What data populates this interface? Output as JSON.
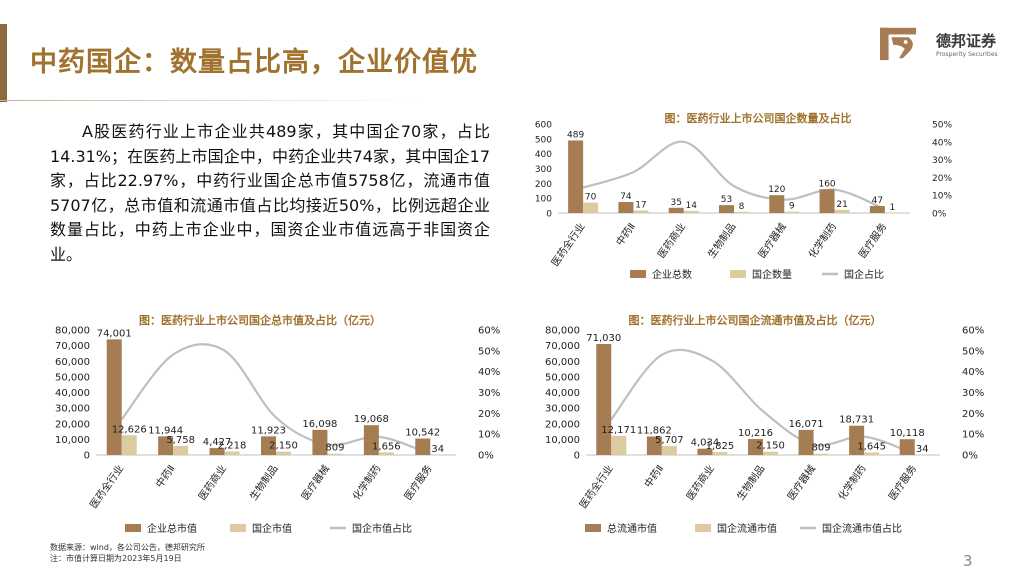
{
  "header": {
    "title": "中药国企：数量占比高，企业价值优"
  },
  "logo": {
    "name_cn": "德邦证券",
    "name_en": "Prosperity Securities"
  },
  "paragraph": "A股医药行业上市企业共489家，其中国企70家，占比14.31%；在医药上市国企中，中药企业共74家，其中国企17家，占比22.97%，中药行业国企总市值5758亿，流通市值5707亿，总市值和流通市值占比均接近50%，比例远超企业数量占比，中药上市企业中，国资企业市值远高于非国资企业。",
  "footer": {
    "source": "数据来源：wind，各公司公告，德邦研究所",
    "note": "注：市值计算日期为2023年5月19日",
    "page_number": "3"
  },
  "colors": {
    "primary": "#a67c52",
    "secondary": "#dccaa0",
    "line": "#bfbfbf",
    "title": "#a0722e"
  },
  "chart_data": [
    {
      "type": "bar",
      "title": "图：医药行业上市公司国企数量及占比",
      "categories": [
        "医药全行业",
        "中药Ⅱ",
        "医药商业",
        "生物制品",
        "医疗器械",
        "化学制药",
        "医疗服务"
      ],
      "series": [
        {
          "name": "企业总数",
          "values": [
            489,
            74,
            35,
            53,
            120,
            160,
            47
          ],
          "labels": [
            "489",
            "74",
            "35",
            "53",
            "120",
            "160",
            "47"
          ],
          "color": "#a67c52",
          "axis": "left"
        },
        {
          "name": "国企数量",
          "values": [
            70,
            17,
            14,
            8,
            9,
            21,
            1
          ],
          "labels": [
            "70",
            "17",
            "14",
            "8",
            "9",
            "21",
            "1"
          ],
          "color": "#dccaa0",
          "axis": "left"
        },
        {
          "name": "国企占比",
          "type": "line",
          "values": [
            14.31,
            22.97,
            40.0,
            15.1,
            7.5,
            13.1,
            2.1
          ],
          "color": "#bfbfbf",
          "axis": "right"
        }
      ],
      "ylim": [
        0,
        600
      ],
      "yticks": [
        0,
        100,
        200,
        300,
        400,
        500,
        600
      ],
      "yticklabels": [
        "0",
        "100",
        "200",
        "300",
        "400",
        "500",
        "600"
      ],
      "y2lim": [
        0,
        50
      ],
      "y2ticks": [
        0,
        10,
        20,
        30,
        40,
        50
      ],
      "y2ticklabels": [
        "0%",
        "10%",
        "20%",
        "30%",
        "40%",
        "50%"
      ],
      "legend": "bottom"
    },
    {
      "type": "bar",
      "title": "图：医药行业上市公司国企总市值及占比（亿元）",
      "categories": [
        "医药全行业",
        "中药Ⅱ",
        "医药商业",
        "生物制品",
        "医疗器械",
        "化学制药",
        "医疗服务"
      ],
      "series": [
        {
          "name": "企业总市值",
          "values": [
            74001,
            11944,
            4427,
            11923,
            16098,
            19068,
            10542
          ],
          "labels": [
            "74,001",
            "11,944",
            "4,427",
            "11,923",
            "16,098",
            "19,068",
            "10,542"
          ],
          "color": "#a67c52",
          "axis": "left"
        },
        {
          "name": "国企市值",
          "values": [
            12626,
            5758,
            2218,
            2150,
            809,
            1656,
            34
          ],
          "labels": [
            "12,626",
            "5,758",
            "2,218",
            "2,150",
            "809",
            "1,656",
            "34"
          ],
          "color": "#dccaa0",
          "axis": "left"
        },
        {
          "name": "国企市值占比",
          "type": "line",
          "values": [
            17.1,
            48.2,
            50.1,
            18.0,
            5.0,
            8.7,
            0.3
          ],
          "color": "#bfbfbf",
          "axis": "right"
        }
      ],
      "ylim": [
        0,
        80000
      ],
      "yticks": [
        0,
        10000,
        20000,
        30000,
        40000,
        50000,
        60000,
        70000,
        80000
      ],
      "yticklabels": [
        "0",
        "10,000",
        "20,000",
        "30,000",
        "40,000",
        "50,000",
        "60,000",
        "70,000",
        "80,000"
      ],
      "y2lim": [
        0,
        60
      ],
      "y2ticks": [
        0,
        10,
        20,
        30,
        40,
        50,
        60
      ],
      "y2ticklabels": [
        "0%",
        "10%",
        "20%",
        "30%",
        "40%",
        "50%",
        "60%"
      ],
      "legend": "bottom"
    },
    {
      "type": "bar",
      "title": "图：医药行业上市公司国企流通市值及占比（亿元）",
      "categories": [
        "医药全行业",
        "中药Ⅱ",
        "医药商业",
        "生物制品",
        "医疗器械",
        "化学制药",
        "医疗服务"
      ],
      "series": [
        {
          "name": "总流通市值",
          "values": [
            71030,
            11862,
            4034,
            10216,
            16071,
            18731,
            10118
          ],
          "labels": [
            "71,030",
            "11,862",
            "4,034",
            "10,216",
            "16,071",
            "18,731",
            "10,118"
          ],
          "color": "#a67c52",
          "axis": "left"
        },
        {
          "name": "国企流通市值",
          "values": [
            12171,
            5707,
            1825,
            2150,
            809,
            1645,
            34
          ],
          "labels": [
            "12,171",
            "5,707",
            "1,825",
            "2,150",
            "809",
            "1,645",
            "34"
          ],
          "color": "#dccaa0",
          "axis": "left"
        },
        {
          "name": "国企流通市值占比",
          "type": "line",
          "values": [
            17.1,
            48.1,
            45.2,
            21.0,
            5.0,
            8.8,
            0.3
          ],
          "color": "#bfbfbf",
          "axis": "right"
        }
      ],
      "ylim": [
        0,
        80000
      ],
      "yticks": [
        0,
        10000,
        20000,
        30000,
        40000,
        50000,
        60000,
        70000,
        80000
      ],
      "yticklabels": [
        "0",
        "10,000",
        "20,000",
        "30,000",
        "40,000",
        "50,000",
        "60,000",
        "70,000",
        "80,000"
      ],
      "y2lim": [
        0,
        60
      ],
      "y2ticks": [
        0,
        10,
        20,
        30,
        40,
        50,
        60
      ],
      "y2ticklabels": [
        "0%",
        "10%",
        "20%",
        "30%",
        "40%",
        "50%",
        "60%"
      ],
      "legend": "bottom"
    }
  ]
}
